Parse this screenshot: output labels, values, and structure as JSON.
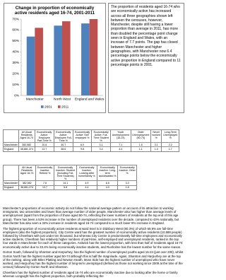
{
  "chart_data": {
    "type": "bar",
    "title": "Change in proportion of economically active residents aged 16-74, 2001-2011",
    "categories": [
      "Manchester",
      "North West",
      "England and Wales"
    ],
    "series": [
      {
        "name": "2001",
        "color": "#4f81bd",
        "values": [
          54,
          64,
          66
        ]
      },
      {
        "name": "2011",
        "color": "#c0504d",
        "values": [
          62,
          68,
          70
        ]
      }
    ],
    "ylim": [
      0,
      70
    ],
    "yticks": [
      {
        "value": 0,
        "label": "0%"
      },
      {
        "value": 10,
        "label": "10%"
      },
      {
        "value": 20,
        "label": "20%"
      },
      {
        "value": 30,
        "label": "30%"
      },
      {
        "value": 40,
        "label": "40%"
      },
      {
        "value": 50,
        "label": "50%"
      },
      {
        "value": 60,
        "label": "60%"
      },
      {
        "value": 70,
        "label": "70%"
      }
    ],
    "legend": "bottom"
  },
  "sidebar": {
    "text": "The proportion of residents aged 16-74 who are economically active has increased across all three geographies shown left between the censuses, however, Manchester, despite still having a lower proportion than average in 2011, has more than doubled the percentage point change seen in England and Wales, with an increase of 7.7 points. The gap has closed between Manchester and higher geographies, with Manchester now 6.4 percentage points below the economically active proportion in England compared to 11 percentage points in 2001."
  },
  "table1": {
    "header": [
      "",
      "All Usual Residents Aged 16-74",
      "Economically Active: Employee Part-Time %",
      "Economically Active: Employee Full-Time %",
      "Economically Active: Self employed %",
      "Economically Active: Full-Time Student %",
      "Youth Unemployment (16-24)",
      "Older Unemployment (50-74)",
      "Never worked %",
      "Long-Term Unemployed %"
    ],
    "rows": [
      [
        "Manchester",
        "382,582",
        "10.8",
        "30.7",
        "6.0",
        "0.1",
        "7.1",
        "1.5",
        "3.1",
        "2.2"
      ],
      [
        "England",
        "38,881,374",
        "13.7",
        "38.6",
        "9.8",
        "3.4",
        "4.4",
        "1.1",
        "1.0",
        "1.7"
      ]
    ]
  },
  "table2": {
    "header": [
      "",
      "All Usual Residents Aged 16-74",
      "Economically Inactive: Retired %",
      "Economically Inactive: Student (Including Full-Time Students) %",
      "Economically Inactive: Looking After home/family %",
      "Economically Inactive: Long-term sick/disabled %",
      "Economically Inactive: Other %"
    ],
    "rows": [
      [
        "Manchester",
        "382,582",
        "7.6",
        "14.1",
        "4.9",
        "6.5",
        "3.3"
      ],
      [
        "England",
        "38,881,374",
        "13.7",
        "5.8",
        "4.4",
        "4.0",
        "1.8"
      ]
    ]
  },
  "paragraphs": [
    "Manchester's proportions of economic activity do not follow the national average pattern on account of its attraction to working immigrants, two universities and lower than average number of older people. Manchester also has higher than average levels of unemployment (apart from the proportion of those aged 50-74, reflecting the lower numbers of residents at the top end of this age group). There has been a 53% increase in the number of unemployed residents over the decade, compared to 43% nationally, but Manchester has also seen a 34% increase in residents aged 16-74 compared to a much lower 9% increase in England.",
    "The highest proportion of economically active residents at ward level is in Didsbury West (80.3%) of which 68.6% are full-time employees (also the highest proportion). City Centre ward has the greatest number of economically active residents (10,588 people) followed by Cheetham with just under ten thousand, but whereas City Centre is predominantly full-time employees and economically active students, Cheetham has relatively higher numbers of part-time, self-employed and unemployed residents, ranked in the top four wards in Manchester for each of these categories. Ardwick has the lowest proportion, with less than half of residents aged 16-74 economically active due to 33.4% being economically inactive students, and Rusholme has the lowest number for the same reason.",
    "Gorton South, followed by Sharston and Harpurhey, has the highest number of unemployed youths aged 16-24 (just over 200), whilst Gorton North has the highest number aged 50-74 although this is half the magnitude. Again, Sharston and Harpurhey are at the top of the ranking, along with Miles Platting and Newton Heath, Moss Side has the highest number of unemployed who have never worked, and Harpurhey has the highest number of long-term unemployed (defined as those not working since 2009 at the time of the census) followed by Gorton North and Sharston.",
    "Cheetham has the highest number of residents aged 16-74 who are economically inactive due to looking after the home or family whereas Longsight has the highest proportion, both probably reflecting the"
  ]
}
